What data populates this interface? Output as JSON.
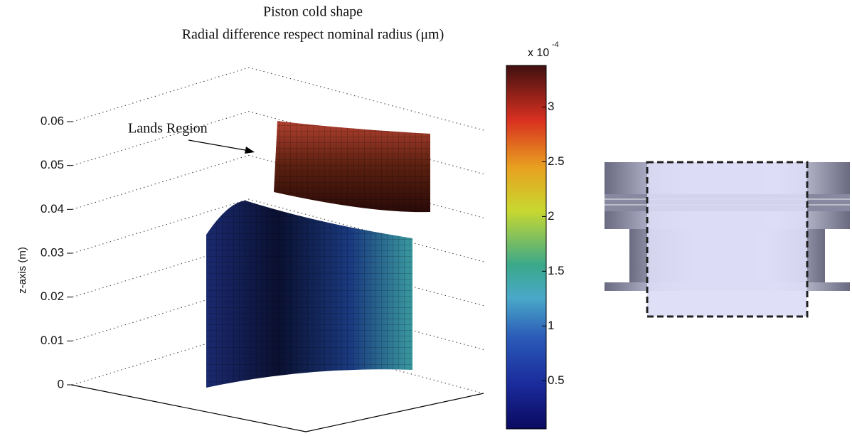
{
  "chart_data": {
    "type": "surface",
    "title": "Piston cold shape",
    "subtitle": "Radial difference respect nominal radius (μm)",
    "zlabel": "z-axis (m)",
    "zlim": [
      0,
      0.06
    ],
    "zticks": [
      0,
      0.01,
      0.02,
      0.03,
      0.04,
      0.05,
      0.06
    ],
    "annotation": "Lands Region",
    "colorbar_multiplier": "x 10",
    "colorbar_exponent": "-4",
    "clim": [
      6e-06,
      0.000338
    ],
    "cticks": [
      {
        "value": 5e-05,
        "label": "0.5"
      },
      {
        "value": 0.0001,
        "label": "1"
      },
      {
        "value": 0.00015,
        "label": "1.5"
      },
      {
        "value": 0.0002,
        "label": "2"
      },
      {
        "value": 0.00025,
        "label": "2.5"
      },
      {
        "value": 0.0003,
        "label": "3"
      }
    ],
    "grid": true
  }
}
